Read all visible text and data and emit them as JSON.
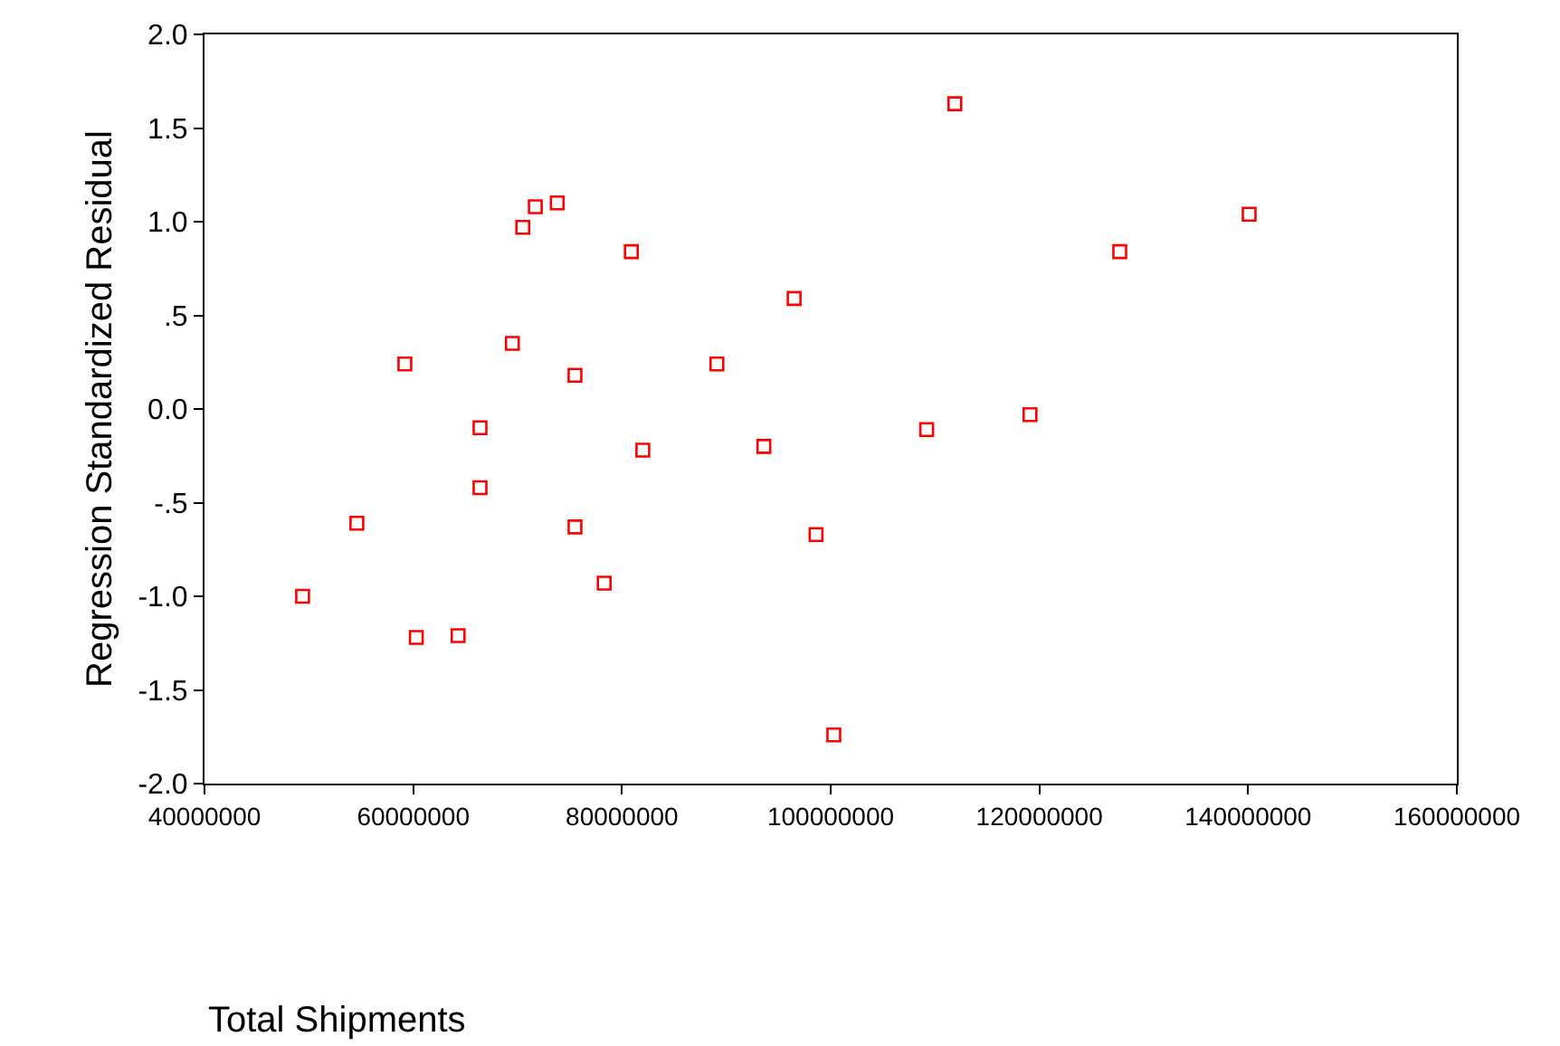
{
  "chart_data": {
    "type": "scatter",
    "xlabel": "Total Shipments",
    "ylabel": "Regression Standardized Residual",
    "x": [
      49400000,
      54600000,
      59200000,
      60300000,
      64300000,
      66400000,
      66400000,
      69500000,
      70500000,
      71700000,
      73800000,
      75500000,
      75500000,
      78300000,
      80900000,
      82000000,
      89100000,
      93600000,
      96500000,
      98600000,
      100300000,
      109200000,
      111900000,
      119100000,
      127700000,
      140100000
    ],
    "series": [
      {
        "color": "#ff0000",
        "values": [
          -1.0,
          -0.61,
          0.24,
          -1.22,
          -1.21,
          -0.1,
          -0.42,
          0.35,
          0.97,
          1.08,
          1.1,
          0.18,
          -0.63,
          -0.93,
          0.84,
          -0.22,
          0.24,
          -0.2,
          0.59,
          -0.67,
          -1.74,
          -0.11,
          1.63,
          -0.03,
          0.84,
          1.04
        ]
      }
    ],
    "xlim": [
      40000000,
      160000000
    ],
    "ylim": [
      -2.0,
      2.0
    ],
    "xticks": [
      40000000,
      60000000,
      80000000,
      100000000,
      120000000,
      140000000,
      160000000
    ],
    "yticks": [
      {
        "value": -2.0,
        "label": "-2.0"
      },
      {
        "value": -1.5,
        "label": "-1.5"
      },
      {
        "value": -1.0,
        "label": "-1.0"
      },
      {
        "value": -0.5,
        "label": "-.5"
      },
      {
        "value": 0.0,
        "label": "0.0"
      },
      {
        "value": 0.5,
        "label": ".5"
      },
      {
        "value": 1.0,
        "label": "1.0"
      },
      {
        "value": 1.5,
        "label": "1.5"
      },
      {
        "value": 2.0,
        "label": "2.0"
      }
    ],
    "marker": "square"
  }
}
